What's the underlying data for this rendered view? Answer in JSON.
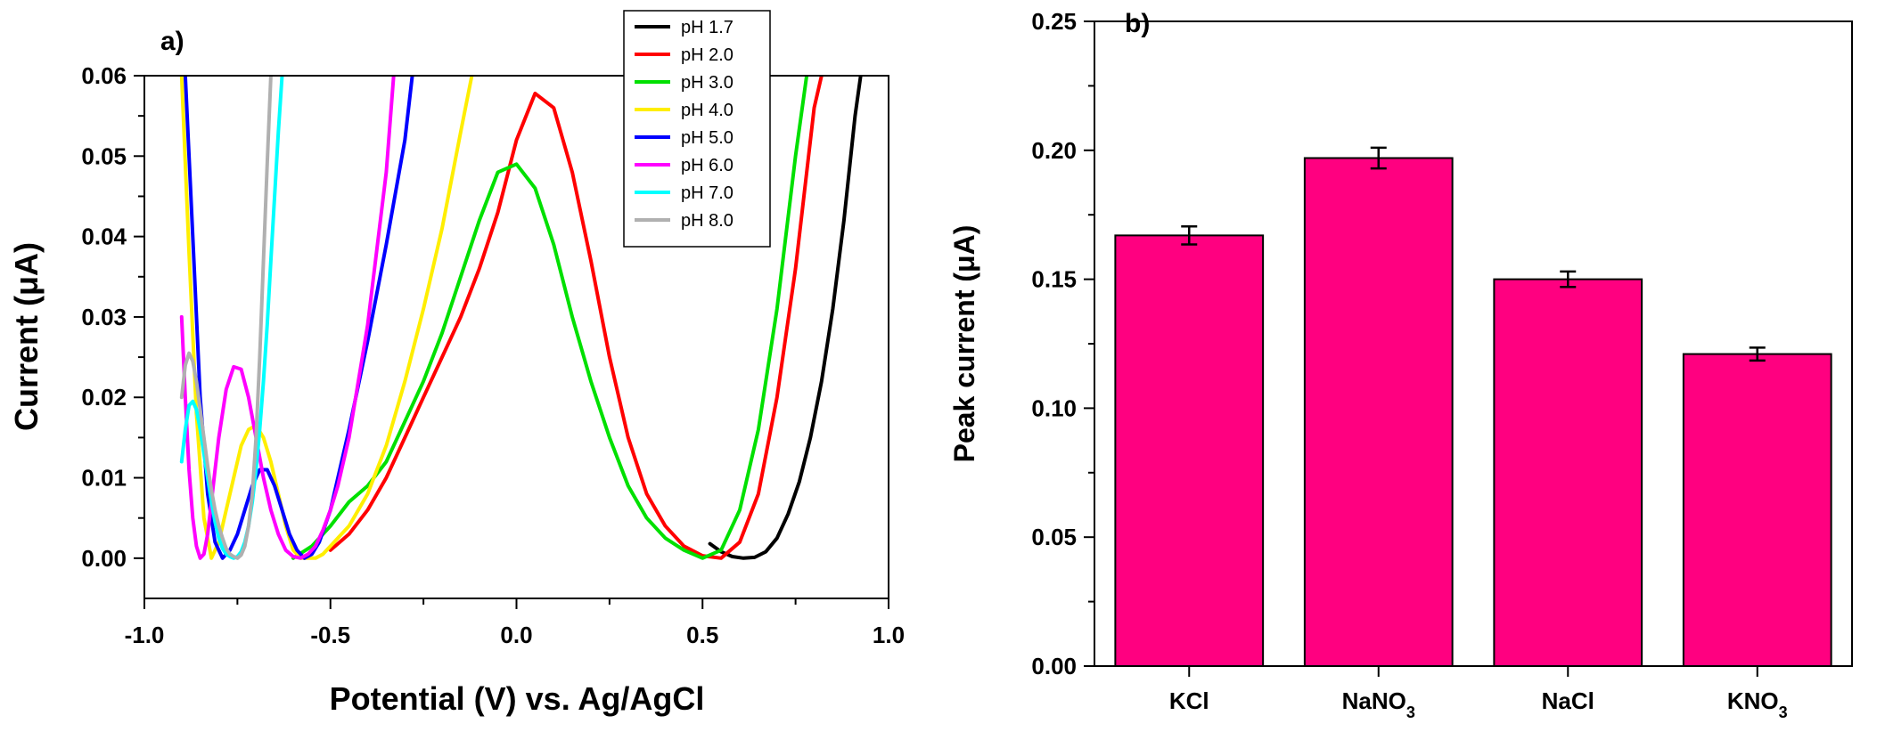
{
  "chart_data": [
    {
      "panel_label": "a)",
      "type": "line",
      "xlabel": "Potential (V) vs. Ag/AgCl",
      "ylabel": "Current (μA)",
      "xlim": [
        -1.0,
        1.0
      ],
      "ylim": [
        -0.005,
        0.06
      ],
      "x_ticks": [
        -1.0,
        -0.5,
        0.0,
        0.5,
        1.0
      ],
      "x_tick_labels": [
        "-1.0",
        "-0.5",
        "0.0",
        "0.5",
        "1.0"
      ],
      "y_ticks": [
        0.0,
        0.01,
        0.02,
        0.03,
        0.04,
        0.05,
        0.06
      ],
      "y_tick_labels": [
        "0.00",
        "0.01",
        "0.02",
        "0.03",
        "0.04",
        "0.05",
        "0.06"
      ],
      "legend_position": "top-right",
      "series": [
        {
          "name": "pH 1.7",
          "color": "#000000",
          "x": [
            0.52,
            0.55,
            0.58,
            0.61,
            0.64,
            0.67,
            0.7,
            0.73,
            0.76,
            0.79,
            0.82,
            0.85,
            0.88,
            0.91,
            0.925
          ],
          "y": [
            0.0018,
            0.0008,
            0.0002,
            0.0,
            0.0001,
            0.0008,
            0.0025,
            0.0055,
            0.0095,
            0.015,
            0.022,
            0.031,
            0.042,
            0.055,
            0.06
          ]
        },
        {
          "name": "pH 2.0",
          "color": "#ff0000",
          "x": [
            -0.5,
            -0.45,
            -0.4,
            -0.35,
            -0.3,
            -0.25,
            -0.2,
            -0.15,
            -0.1,
            -0.05,
            0.0,
            0.05,
            0.1,
            0.15,
            0.2,
            0.25,
            0.3,
            0.35,
            0.4,
            0.45,
            0.5,
            0.55,
            0.6,
            0.65,
            0.7,
            0.75,
            0.8,
            0.82
          ],
          "y": [
            0.001,
            0.003,
            0.006,
            0.01,
            0.015,
            0.02,
            0.025,
            0.03,
            0.036,
            0.043,
            0.052,
            0.0578,
            0.056,
            0.048,
            0.037,
            0.025,
            0.015,
            0.008,
            0.004,
            0.0015,
            0.0003,
            0.0,
            0.002,
            0.008,
            0.02,
            0.036,
            0.056,
            0.06
          ]
        },
        {
          "name": "pH 3.0",
          "color": "#00e000",
          "x": [
            -0.6,
            -0.55,
            -0.5,
            -0.45,
            -0.4,
            -0.35,
            -0.3,
            -0.25,
            -0.2,
            -0.15,
            -0.1,
            -0.05,
            0.0,
            0.05,
            0.1,
            0.15,
            0.2,
            0.25,
            0.3,
            0.35,
            0.4,
            0.45,
            0.5,
            0.55,
            0.6,
            0.65,
            0.7,
            0.75,
            0.78
          ],
          "y": [
            0.0,
            0.0015,
            0.004,
            0.007,
            0.009,
            0.012,
            0.017,
            0.022,
            0.028,
            0.035,
            0.042,
            0.048,
            0.049,
            0.046,
            0.039,
            0.03,
            0.022,
            0.015,
            0.009,
            0.005,
            0.0025,
            0.001,
            0.0,
            0.001,
            0.006,
            0.016,
            0.031,
            0.05,
            0.06
          ]
        },
        {
          "name": "pH 4.0",
          "color": "#ffee00",
          "x": [
            -0.9,
            -0.88,
            -0.86,
            -0.84,
            -0.82,
            -0.8,
            -0.78,
            -0.76,
            -0.74,
            -0.72,
            -0.7,
            -0.68,
            -0.66,
            -0.64,
            -0.62,
            -0.6,
            -0.58,
            -0.56,
            -0.54,
            -0.52,
            -0.5,
            -0.45,
            -0.4,
            -0.35,
            -0.3,
            -0.25,
            -0.2,
            -0.15,
            -0.12
          ],
          "y": [
            0.06,
            0.038,
            0.018,
            0.005,
            0.0,
            0.002,
            0.006,
            0.01,
            0.014,
            0.016,
            0.0165,
            0.015,
            0.012,
            0.008,
            0.004,
            0.001,
            0.0,
            0.0,
            0.0,
            0.0005,
            0.0015,
            0.004,
            0.008,
            0.014,
            0.022,
            0.031,
            0.041,
            0.053,
            0.06
          ]
        },
        {
          "name": "pH 5.0",
          "color": "#0000ff",
          "x": [
            -0.89,
            -0.87,
            -0.85,
            -0.83,
            -0.81,
            -0.79,
            -0.77,
            -0.75,
            -0.73,
            -0.71,
            -0.69,
            -0.67,
            -0.65,
            -0.63,
            -0.61,
            -0.59,
            -0.57,
            -0.55,
            -0.53,
            -0.5,
            -0.45,
            -0.4,
            -0.35,
            -0.3,
            -0.28
          ],
          "y": [
            0.06,
            0.04,
            0.02,
            0.008,
            0.002,
            0.0,
            0.001,
            0.003,
            0.006,
            0.009,
            0.011,
            0.011,
            0.009,
            0.006,
            0.003,
            0.001,
            0.0,
            0.0005,
            0.002,
            0.006,
            0.016,
            0.027,
            0.039,
            0.052,
            0.06
          ]
        },
        {
          "name": "pH 6.0",
          "color": "#ff00ff",
          "x": [
            -0.9,
            -0.89,
            -0.88,
            -0.87,
            -0.86,
            -0.85,
            -0.84,
            -0.83,
            -0.82,
            -0.81,
            -0.8,
            -0.78,
            -0.76,
            -0.74,
            -0.72,
            -0.7,
            -0.68,
            -0.66,
            -0.64,
            -0.62,
            -0.6,
            -0.58,
            -0.56,
            -0.54,
            -0.52,
            -0.5,
            -0.48,
            -0.45,
            -0.4,
            -0.35,
            -0.33
          ],
          "y": [
            0.03,
            0.02,
            0.011,
            0.005,
            0.0015,
            0.0,
            0.0005,
            0.003,
            0.007,
            0.011,
            0.015,
            0.021,
            0.0238,
            0.0235,
            0.02,
            0.015,
            0.01,
            0.006,
            0.003,
            0.001,
            0.0002,
            0.0,
            0.0005,
            0.0015,
            0.0035,
            0.006,
            0.009,
            0.015,
            0.029,
            0.048,
            0.06
          ]
        },
        {
          "name": "pH 7.0",
          "color": "#00ffff",
          "x": [
            -0.9,
            -0.89,
            -0.88,
            -0.87,
            -0.86,
            -0.85,
            -0.84,
            -0.83,
            -0.82,
            -0.81,
            -0.8,
            -0.79,
            -0.78,
            -0.77,
            -0.76,
            -0.75,
            -0.74,
            -0.73,
            -0.72,
            -0.71,
            -0.7,
            -0.69,
            -0.68,
            -0.67,
            -0.66,
            -0.65,
            -0.64,
            -0.63
          ],
          "y": [
            0.012,
            0.016,
            0.019,
            0.0195,
            0.0185,
            0.016,
            0.013,
            0.01,
            0.007,
            0.0045,
            0.0025,
            0.0012,
            0.0005,
            0.0002,
            0.0,
            0.0002,
            0.0008,
            0.002,
            0.004,
            0.007,
            0.011,
            0.016,
            0.022,
            0.029,
            0.037,
            0.045,
            0.053,
            0.06
          ]
        },
        {
          "name": "pH 8.0",
          "color": "#b0b0b0",
          "x": [
            -0.9,
            -0.89,
            -0.88,
            -0.87,
            -0.86,
            -0.85,
            -0.84,
            -0.83,
            -0.82,
            -0.81,
            -0.8,
            -0.79,
            -0.78,
            -0.77,
            -0.76,
            -0.75,
            -0.74,
            -0.73,
            -0.72,
            -0.71,
            -0.7,
            -0.69,
            -0.68,
            -0.67,
            -0.66
          ],
          "y": [
            0.02,
            0.024,
            0.0255,
            0.0245,
            0.022,
            0.0185,
            0.015,
            0.0115,
            0.0085,
            0.006,
            0.004,
            0.0025,
            0.0012,
            0.0005,
            0.0002,
            0.0,
            0.0004,
            0.0015,
            0.004,
            0.008,
            0.015,
            0.025,
            0.037,
            0.049,
            0.06
          ]
        }
      ]
    },
    {
      "panel_label": "b)",
      "type": "bar",
      "ylabel": "Peak current (μA)",
      "xlabel": "",
      "ylim": [
        0.0,
        0.25
      ],
      "y_ticks": [
        0.0,
        0.05,
        0.1,
        0.15,
        0.2,
        0.25
      ],
      "y_tick_labels": [
        "0.00",
        "0.05",
        "0.10",
        "0.15",
        "0.20",
        "0.25"
      ],
      "bar_color": "#ff0080",
      "categories": [
        {
          "main": "KCl",
          "sub": ""
        },
        {
          "main": "NaNO",
          "sub": "3"
        },
        {
          "main": "NaCl",
          "sub": ""
        },
        {
          "main": "KNO",
          "sub": "3"
        }
      ],
      "values": [
        0.167,
        0.197,
        0.15,
        0.121
      ],
      "errors": [
        0.0035,
        0.004,
        0.003,
        0.0025
      ]
    }
  ]
}
